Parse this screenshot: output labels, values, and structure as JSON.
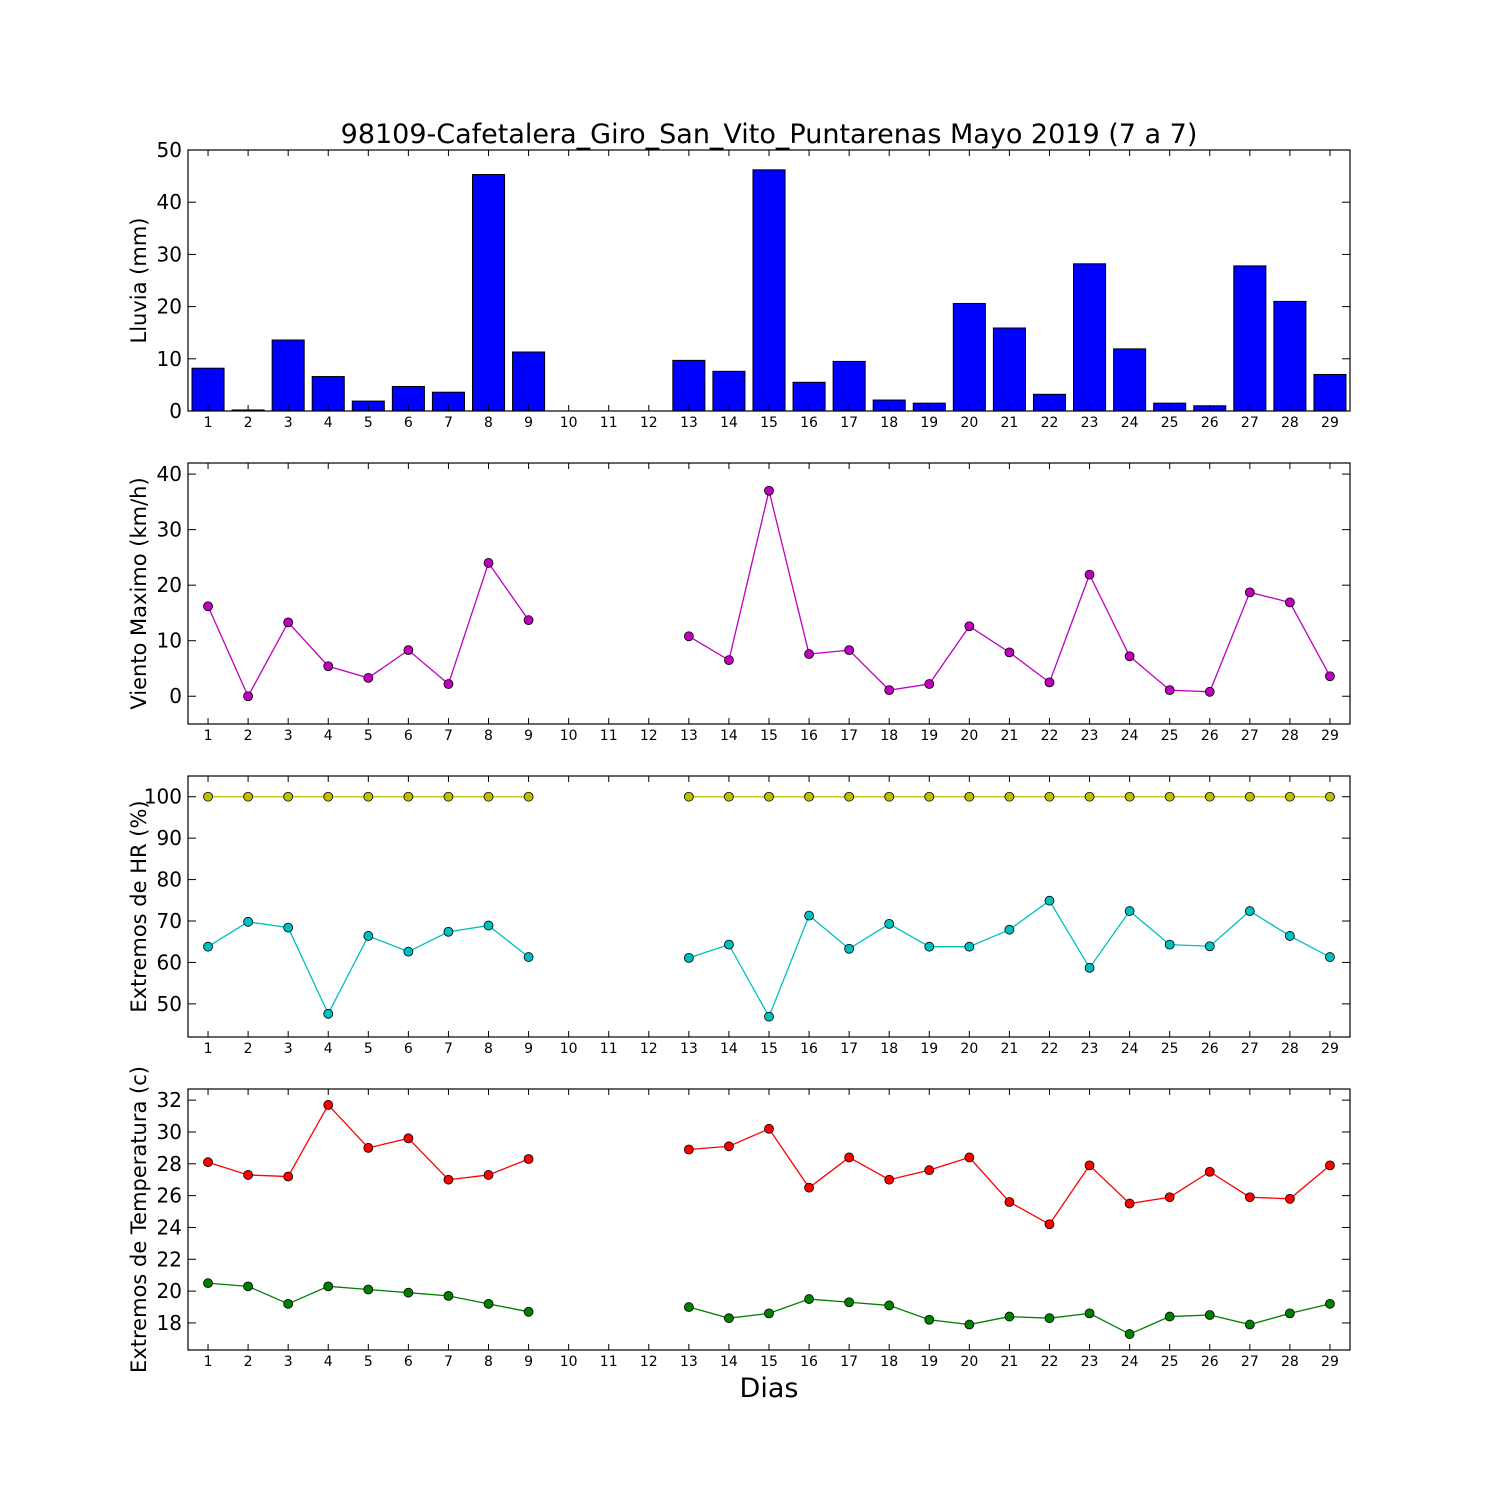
{
  "chart_data": {
    "title": "98109-Cafetalera_Giro_San_Vito_Puntarenas Mayo 2019  (7 a 7)",
    "xlabel": "Dias",
    "days": [
      1,
      2,
      3,
      4,
      5,
      6,
      7,
      8,
      9,
      10,
      11,
      12,
      13,
      14,
      15,
      16,
      17,
      18,
      19,
      20,
      21,
      22,
      23,
      24,
      25,
      26,
      27,
      28,
      29
    ],
    "panels": [
      {
        "id": "lluvia",
        "type": "bar",
        "ylabel": "Lluvia (mm)",
        "ylim": [
          0,
          50
        ],
        "yticks": [
          0,
          10,
          20,
          30,
          40,
          50
        ],
        "series": [
          {
            "color": "#0000ff",
            "values": [
              8.2,
              0.2,
              13.6,
              6.6,
              1.9,
              4.7,
              3.6,
              45.3,
              11.3,
              null,
              null,
              null,
              9.7,
              7.6,
              46.2,
              5.5,
              9.5,
              2.1,
              1.5,
              20.6,
              15.9,
              3.2,
              28.2,
              11.9,
              1.5,
              1.0,
              27.8,
              21.0,
              7.0
            ]
          }
        ]
      },
      {
        "id": "viento",
        "type": "line",
        "ylabel": "Viento Maximo (km/h)",
        "ylim": [
          -5,
          42
        ],
        "yticks": [
          0,
          10,
          20,
          30,
          40
        ],
        "series": [
          {
            "color": "#bf00bf",
            "values": [
              16.2,
              0.0,
              13.3,
              5.4,
              3.3,
              8.3,
              2.2,
              24.0,
              13.7,
              null,
              null,
              null,
              10.8,
              6.5,
              37.0,
              7.6,
              8.3,
              1.1,
              2.2,
              12.6,
              7.9,
              2.5,
              21.9,
              7.2,
              1.1,
              0.8,
              18.7,
              16.9,
              3.6
            ]
          }
        ]
      },
      {
        "id": "hr",
        "type": "line",
        "ylabel": "Extremos de HR (%)",
        "ylim": [
          42,
          105
        ],
        "yticks": [
          50,
          60,
          70,
          80,
          90,
          100
        ],
        "series": [
          {
            "color": "#bfbf00",
            "values": [
              100,
              100,
              100,
              100,
              100,
              100,
              100,
              100,
              100,
              null,
              null,
              null,
              100,
              100,
              100,
              100,
              100,
              100,
              100,
              100,
              100,
              100,
              100,
              100,
              100,
              100,
              100,
              100,
              100
            ]
          },
          {
            "color": "#00bfbf",
            "values": [
              63.8,
              69.8,
              68.4,
              47.6,
              66.4,
              62.6,
              67.4,
              68.9,
              61.3,
              null,
              null,
              null,
              61.1,
              64.3,
              46.9,
              71.3,
              63.3,
              69.3,
              63.8,
              63.8,
              67.9,
              74.9,
              58.7,
              72.4,
              64.3,
              63.9,
              72.4,
              66.4,
              61.3
            ]
          }
        ]
      },
      {
        "id": "temperatura",
        "type": "line",
        "ylabel": "Extremos de Temperatura (c)",
        "ylim": [
          16.3,
          32.7
        ],
        "yticks": [
          18,
          20,
          22,
          24,
          26,
          28,
          30,
          32
        ],
        "series": [
          {
            "color": "#ff0000",
            "values": [
              28.1,
              27.3,
              27.2,
              31.7,
              29.0,
              29.6,
              27.0,
              27.3,
              28.3,
              null,
              null,
              null,
              28.9,
              29.1,
              30.2,
              26.5,
              28.4,
              27.0,
              27.6,
              28.4,
              25.6,
              24.2,
              27.9,
              25.5,
              25.9,
              27.5,
              25.9,
              25.8,
              27.9
            ]
          },
          {
            "color": "#008000",
            "values": [
              20.5,
              20.3,
              19.2,
              20.3,
              20.1,
              19.9,
              19.7,
              19.2,
              18.7,
              null,
              null,
              null,
              19.0,
              18.3,
              18.6,
              19.5,
              19.3,
              19.1,
              18.2,
              17.9,
              18.4,
              18.3,
              18.6,
              17.3,
              18.4,
              18.5,
              17.9,
              18.6,
              19.2
            ]
          }
        ]
      }
    ]
  }
}
